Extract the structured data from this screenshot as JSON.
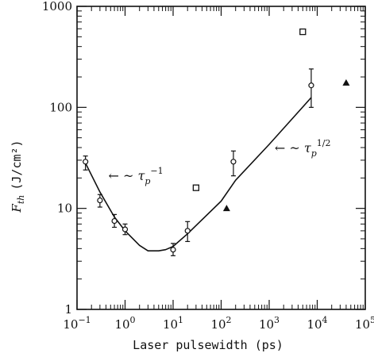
{
  "chart_data": {
    "type": "scatter",
    "title": "",
    "xlabel": "Laser pulsewidth (ps)",
    "ylabel": "F",
    "ylabel_subscript": "th",
    "ylabel_unit": "(J/cm²)",
    "x_scale": "log",
    "y_scale": "log",
    "xlim": [
      0.1,
      100000
    ],
    "ylim": [
      1,
      1000
    ],
    "x_ticks": [
      {
        "value": 0.1,
        "base": "10",
        "exp": "−1"
      },
      {
        "value": 1,
        "base": "10",
        "exp": "0"
      },
      {
        "value": 10,
        "base": "10",
        "exp": "1"
      },
      {
        "value": 100,
        "base": "10",
        "exp": "2"
      },
      {
        "value": 1000,
        "base": "10",
        "exp": "3"
      },
      {
        "value": 10000,
        "base": "10",
        "exp": "4"
      },
      {
        "value": 100000,
        "base": "10",
        "exp": "5"
      }
    ],
    "y_ticks": [
      {
        "value": 1,
        "label": "1"
      },
      {
        "value": 10,
        "label": "10"
      },
      {
        "value": 100,
        "label": "100"
      },
      {
        "value": 1000,
        "label": "1000"
      }
    ],
    "grid": false,
    "series": [
      {
        "marker": "circle",
        "points": [
          {
            "x": 0.15,
            "y": 29,
            "ylo": 24,
            "yhi": 33
          },
          {
            "x": 0.3,
            "y": 12,
            "ylo": 10.3,
            "yhi": 13.7
          },
          {
            "x": 0.6,
            "y": 7.5,
            "ylo": 6.5,
            "yhi": 8.7
          },
          {
            "x": 1,
            "y": 6.2,
            "ylo": 5.5,
            "yhi": 7
          },
          {
            "x": 10,
            "y": 3.9,
            "ylo": 3.4,
            "yhi": 4.5
          },
          {
            "x": 20,
            "y": 6,
            "ylo": 4.7,
            "yhi": 7.4
          },
          {
            "x": 180,
            "y": 29,
            "ylo": 21,
            "yhi": 37
          },
          {
            "x": 7500,
            "y": 165,
            "ylo": 100,
            "yhi": 240
          }
        ]
      },
      {
        "marker": "square",
        "points": [
          {
            "x": 30,
            "y": 16
          },
          {
            "x": 5000,
            "y": 560
          }
        ]
      },
      {
        "marker": "triangle",
        "points": [
          {
            "x": 130,
            "y": 10
          },
          {
            "x": 40000,
            "y": 175
          }
        ]
      }
    ],
    "fit_curve": [
      {
        "x": 0.15,
        "y": 28
      },
      {
        "x": 0.3,
        "y": 14.5
      },
      {
        "x": 0.6,
        "y": 8.2
      },
      {
        "x": 1,
        "y": 6.0
      },
      {
        "x": 2,
        "y": 4.3
      },
      {
        "x": 3,
        "y": 3.8
      },
      {
        "x": 5,
        "y": 3.8
      },
      {
        "x": 7,
        "y": 3.9
      },
      {
        "x": 10,
        "y": 4.2
      },
      {
        "x": 20,
        "y": 5.6
      },
      {
        "x": 100,
        "y": 11.8
      },
      {
        "x": 200,
        "y": 19
      },
      {
        "x": 1000,
        "y": 43
      },
      {
        "x": 7500,
        "y": 125
      }
    ],
    "annotations": [
      {
        "arrow": "← ~ ",
        "symbol": "τ",
        "sub": "p",
        "sup": "−1",
        "x": 0.45,
        "y": 19
      },
      {
        "arrow": "← ~ ",
        "symbol": "τ",
        "sub": "p",
        "sup": "1/2",
        "x": 1300,
        "y": 36
      }
    ]
  }
}
